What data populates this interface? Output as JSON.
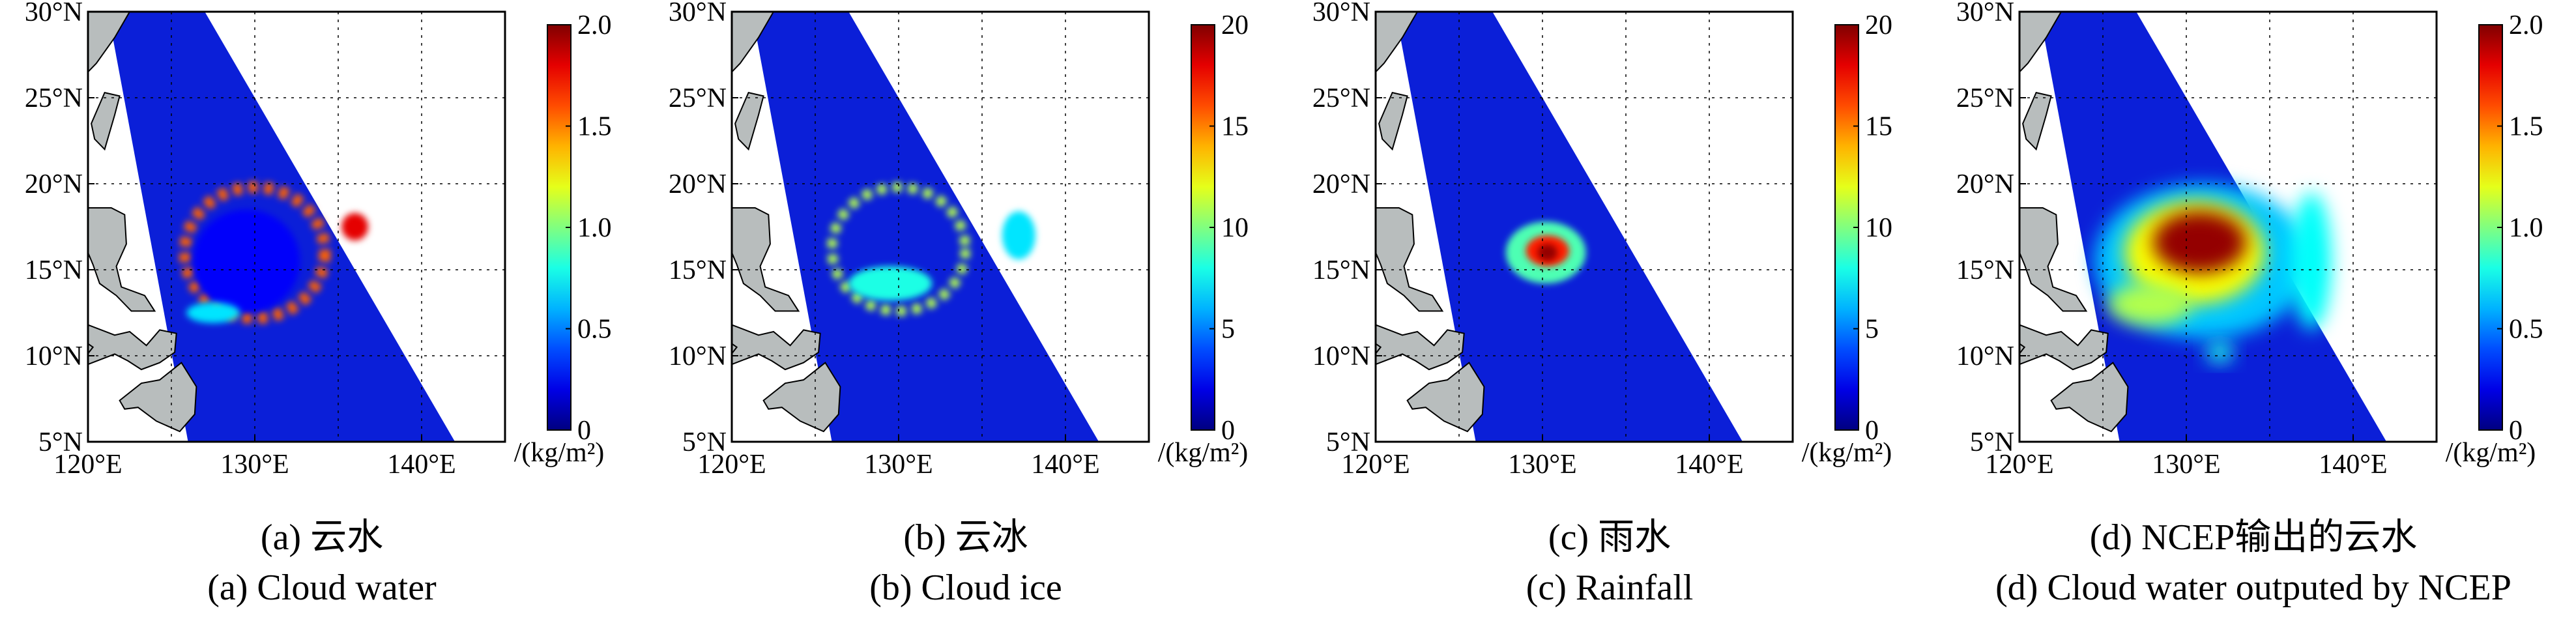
{
  "colors": {
    "land": "#b8bdbd",
    "background_swath": "#0b1fd8",
    "grid": "#000000"
  },
  "axes": {
    "x_ticks": [
      "120°E",
      "130°E",
      "140°E"
    ],
    "y_ticks": [
      "30°N",
      "25°N",
      "20°N",
      "15°N",
      "10°N",
      "5°N"
    ]
  },
  "panels": [
    {
      "id": "a",
      "caption_cn": "(a) 云水",
      "caption_en": "(a) Cloud water",
      "colorbar": {
        "ticks": [
          "2.0",
          "1.5",
          "1.0",
          "0.5",
          "0"
        ],
        "unit": "/(kg/m²)",
        "range": [
          0,
          2.0
        ]
      }
    },
    {
      "id": "b",
      "caption_cn": "(b) 云冰",
      "caption_en": "(b) Cloud ice",
      "colorbar": {
        "ticks": [
          "20",
          "15",
          "10",
          "5",
          "0"
        ],
        "unit": "/(kg/m²)",
        "range": [
          0,
          20
        ]
      }
    },
    {
      "id": "c",
      "caption_cn": "(c) 雨水",
      "caption_en": "(c) Rainfall",
      "colorbar": {
        "ticks": [
          "20",
          "15",
          "10",
          "5",
          "0"
        ],
        "unit": "/(kg/m²)",
        "range": [
          0,
          20
        ]
      }
    },
    {
      "id": "d",
      "caption_cn": "(d) NCEP输出的云水",
      "caption_en": "(d) Cloud water outputed by NCEP",
      "colorbar": {
        "ticks": [
          "2.0",
          "1.5",
          "1.0",
          "0.5",
          "0"
        ],
        "unit": "/(kg/m²)",
        "range": [
          0,
          2.0
        ]
      }
    }
  ],
  "chart_data": [
    {
      "type": "heatmap",
      "panel": "a",
      "x_range_lon": [
        120,
        145
      ],
      "y_range_lat": [
        5,
        30
      ],
      "colorbar_range": [
        0,
        2.0
      ],
      "unit": "/(kg/m²)"
    },
    {
      "type": "heatmap",
      "panel": "b",
      "x_range_lon": [
        120,
        145
      ],
      "y_range_lat": [
        5,
        30
      ],
      "colorbar_range": [
        0,
        20
      ],
      "unit": "/(kg/m²)"
    },
    {
      "type": "heatmap",
      "panel": "c",
      "x_range_lon": [
        120,
        145
      ],
      "y_range_lat": [
        5,
        30
      ],
      "colorbar_range": [
        0,
        20
      ],
      "unit": "/(kg/m²)"
    },
    {
      "type": "heatmap",
      "panel": "d",
      "x_range_lon": [
        120,
        145
      ],
      "y_range_lat": [
        5,
        30
      ],
      "colorbar_range": [
        0,
        2.0
      ],
      "unit": "/(kg/m²)"
    }
  ]
}
